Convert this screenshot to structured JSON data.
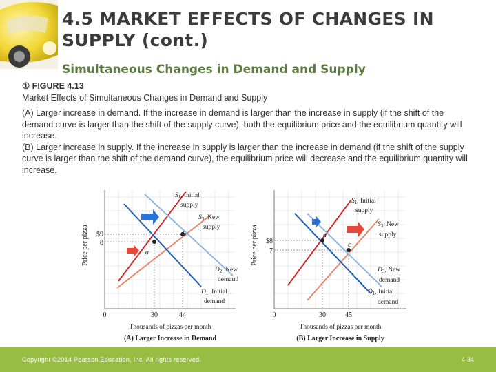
{
  "slide": {
    "title": "4.5 MARKET EFFECTS OF CHANGES IN SUPPLY (cont.)",
    "subtitle": "Simultaneous Changes in Demand and Supply",
    "figure_label": "① FIGURE 4.13",
    "figure_title": "Market Effects of Simultaneous Changes in Demand and Supply",
    "paragraph_a": "(A) Larger increase in demand. If the increase in demand is larger than the increase in supply (if the shift of the demand curve is larger than the shift of the supply curve), both the equilibrium price and the equilibrium quantity will increase.",
    "paragraph_b": "(B) Larger increase in supply. If the increase in supply is larger than the increase in demand (if the shift of the supply curve is larger than the shift of the demand curve), the equilibrium price will decrease and the equilibrium quantity will increase.",
    "footer": "Copyright ©2014 Pearson Education, Inc. All rights reserved.",
    "page": "4-34"
  },
  "colors": {
    "supply_initial": "#cc2b2b",
    "supply_new": "#e8876a",
    "demand_initial": "#1f62b5",
    "demand_new": "#8cb8e0",
    "arrow_blue": "#2a74d8",
    "arrow_red": "#e5483b",
    "footer_bar": "#97bd43",
    "title_text": "#3b3b3b",
    "subtitle_text": "#5b7a3d"
  },
  "chart_data": [
    {
      "type": "line",
      "panel_title": "(A) Larger Increase in Demand",
      "xlabel": "Thousands of pizzas per month",
      "ylabel": "Price per pizza",
      "x_ticks": [
        "0",
        "30",
        "44"
      ],
      "y_ticks": [
        "$9",
        "8"
      ],
      "points": [
        {
          "label": "a",
          "x": 30,
          "y": 8
        },
        {
          "label": "b",
          "x": 44,
          "y": 9
        }
      ],
      "curves": [
        {
          "name_prefix": "S",
          "name_sub": "1",
          "name_line1": ", Initial",
          "name_line2": "supply",
          "role": "supply_initial"
        },
        {
          "name_prefix": "S",
          "name_sub": "3",
          "name_line1": ", New",
          "name_line2": "supply",
          "role": "supply_new"
        },
        {
          "name_prefix": "D",
          "name_sub": "2",
          "name_line1": ", New",
          "name_line2": "demand",
          "role": "demand_new"
        },
        {
          "name_prefix": "D",
          "name_sub": "1",
          "name_line1": ", Initial",
          "name_line2": "demand",
          "role": "demand_initial"
        }
      ]
    },
    {
      "type": "line",
      "panel_title": "(B) Larger Increase in Supply",
      "xlabel": "Thousands of pizzas per month",
      "ylabel": "Price per pizza",
      "x_ticks": [
        "0",
        "30",
        "45"
      ],
      "y_ticks": [
        "$8",
        "7"
      ],
      "points": [
        {
          "label": "a",
          "x": 30,
          "y": 8
        },
        {
          "label": "c",
          "x": 45,
          "y": 7
        }
      ],
      "curves": [
        {
          "name_prefix": "S",
          "name_sub": "1",
          "name_line1": ", Initial",
          "name_line2": "supply",
          "role": "supply_initial"
        },
        {
          "name_prefix": "S",
          "name_sub": "3",
          "name_line1": ", New",
          "name_line2": "supply",
          "role": "supply_new"
        },
        {
          "name_prefix": "D",
          "name_sub": "3",
          "name_line1": ", New",
          "name_line2": "demand",
          "role": "demand_new"
        },
        {
          "name_prefix": "D",
          "name_sub": "1",
          "name_line1": ", Initial",
          "name_line2": "demand",
          "role": "demand_initial"
        }
      ]
    }
  ]
}
